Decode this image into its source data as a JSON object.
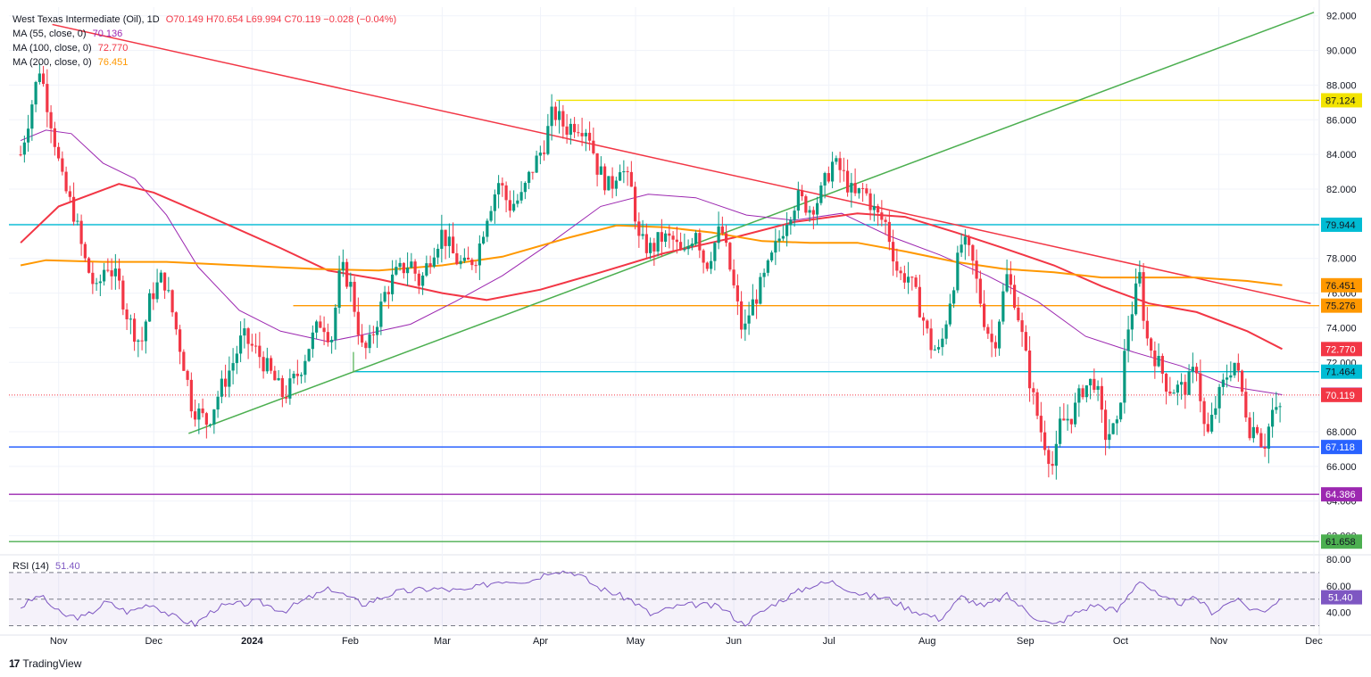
{
  "legend": {
    "symbol": "West Texas Intermediate (Oil), 1D",
    "ohlc": "O70.149  H70.654  L69.994  C70.119  −0.028 (−0.04%)",
    "ma55_label": "MA (55, close, 0)",
    "ma55_value": "70.136",
    "ma100_label": "MA (100, close, 0)",
    "ma100_value": "72.770",
    "ma200_label": "MA (200, close, 0)",
    "ma200_value": "76.451",
    "rsi_label": "RSI (14)",
    "rsi_value": "51.40"
  },
  "brand": {
    "logo": "17",
    "name": "TradingView"
  },
  "colors": {
    "up": "#089981",
    "down": "#f23645",
    "ma55": "#9c27b0",
    "ma100": "#f23645",
    "ma200": "#ff9800",
    "rsi": "#7e57c2",
    "trend_down": "#f23645",
    "trend_up": "#4caf50"
  },
  "chart_data": {
    "type": "candlestick",
    "title": "West Texas Intermediate (Oil), 1D",
    "x_ticks": [
      "Nov",
      "Dec",
      "2024",
      "Feb",
      "Mar",
      "Apr",
      "May",
      "Jun",
      "Jul",
      "Aug",
      "Sep",
      "Oct",
      "Nov",
      "Dec"
    ],
    "y_ticks": [
      "92.000",
      "90.000",
      "88.000",
      "86.000",
      "84.000",
      "82.000",
      "80.000",
      "78.000",
      "76.000",
      "74.000",
      "72.000",
      "70.000",
      "68.000",
      "66.000",
      "64.000",
      "62.000"
    ],
    "ylim": [
      61,
      92.5
    ],
    "rsi_ticks": [
      "80.00",
      "60.00",
      "40.00"
    ],
    "rsi_ylim": [
      27,
      82
    ],
    "rsi_bands": [
      70,
      50,
      30
    ],
    "last_close": 70.119,
    "ohlc": {
      "open": 70.149,
      "high": 70.654,
      "low": 69.994,
      "close": 70.119,
      "change": -0.028,
      "change_pct": -0.04
    },
    "moving_averages": [
      {
        "name": "MA (55, close, 0)",
        "last": 70.136
      },
      {
        "name": "MA (100, close, 0)",
        "last": 72.77
      },
      {
        "name": "MA (200, close, 0)",
        "last": 76.451
      }
    ],
    "rsi_last": 51.4,
    "horizontal_levels": [
      {
        "value": 87.124,
        "color": "#f2e300",
        "label": "87.124",
        "label_bg": "#f2e300",
        "label_fg": "#131722"
      },
      {
        "value": 79.944,
        "color": "#00bcd4",
        "label": "79.944",
        "label_bg": "#00bcd4",
        "label_fg": "#131722"
      },
      {
        "value": 76.451,
        "color": "#ff9800",
        "label": "76.451",
        "label_bg": "#ff9800",
        "label_fg": "#131722"
      },
      {
        "value": 75.276,
        "color": "#ff9800",
        "label": "75.276",
        "label_bg": "#ff9800",
        "label_fg": "#131722"
      },
      {
        "value": 72.77,
        "color": "#f23645",
        "label": "72.770",
        "label_bg": "#f23645",
        "label_fg": "#ffffff"
      },
      {
        "value": 71.464,
        "color": "#00bcd4",
        "label": "71.464",
        "label_bg": "#00bcd4",
        "label_fg": "#131722"
      },
      {
        "value": 70.136,
        "color": "#9c27b0",
        "label": "70.136",
        "label_bg": "#9c27b0",
        "label_fg": "#ffffff"
      },
      {
        "value": 70.119,
        "color": "#f23645",
        "label": "70.119",
        "label_bg": "#f23645",
        "label_fg": "#ffffff"
      },
      {
        "value": 67.118,
        "color": "#2962ff",
        "label": "67.118",
        "label_bg": "#2962ff",
        "label_fg": "#ffffff"
      },
      {
        "value": 64.386,
        "color": "#9c27b0",
        "label": "64.386",
        "label_bg": "#9c27b0",
        "label_fg": "#ffffff"
      },
      {
        "value": 61.658,
        "color": "#4caf50",
        "label": "61.658",
        "label_bg": "#4caf50",
        "label_fg": "#131722"
      }
    ],
    "rsi_label_value": "51.40",
    "ma_paths": [
      {
        "name": "MA 55",
        "color": "#9c27b0",
        "points": [
          [
            "2023-10-20",
            84.8
          ],
          [
            "2023-10-28",
            85.4
          ],
          [
            "2023-11-05",
            85.2
          ],
          [
            "2023-11-15",
            83.5
          ],
          [
            "2023-11-25",
            82.6
          ],
          [
            "2023-12-05",
            80.5
          ],
          [
            "2023-12-15",
            77.5
          ],
          [
            "2023-12-28",
            75.0
          ],
          [
            "2024-01-10",
            73.8
          ],
          [
            "2024-01-25",
            73.2
          ],
          [
            "2024-02-05",
            73.6
          ],
          [
            "2024-02-20",
            74.2
          ],
          [
            "2024-03-05",
            75.5
          ],
          [
            "2024-03-20",
            77.0
          ],
          [
            "2024-04-05",
            79.0
          ],
          [
            "2024-04-20",
            81.0
          ],
          [
            "2024-05-05",
            81.7
          ],
          [
            "2024-05-20",
            81.5
          ],
          [
            "2024-06-05",
            80.5
          ],
          [
            "2024-06-20",
            80.2
          ],
          [
            "2024-07-05",
            80.6
          ],
          [
            "2024-07-20",
            79.3
          ],
          [
            "2024-08-05",
            78.2
          ],
          [
            "2024-08-20",
            77.0
          ],
          [
            "2024-09-05",
            75.5
          ],
          [
            "2024-09-20",
            73.5
          ],
          [
            "2024-10-05",
            72.6
          ],
          [
            "2024-10-20",
            71.8
          ],
          [
            "2024-11-05",
            70.6
          ],
          [
            "2024-11-21",
            70.136
          ]
        ]
      },
      {
        "name": "MA 100",
        "color": "#f23645",
        "points": [
          [
            "2023-10-20",
            78.9
          ],
          [
            "2023-11-01",
            81.0
          ],
          [
            "2023-11-20",
            82.3
          ],
          [
            "2023-12-01",
            81.8
          ],
          [
            "2023-12-20",
            80.3
          ],
          [
            "2024-01-10",
            78.6
          ],
          [
            "2024-01-25",
            77.3
          ],
          [
            "2024-02-10",
            76.8
          ],
          [
            "2024-03-01",
            76.0
          ],
          [
            "2024-03-15",
            75.6
          ],
          [
            "2024-04-01",
            76.2
          ],
          [
            "2024-04-20",
            77.2
          ],
          [
            "2024-05-10",
            78.3
          ],
          [
            "2024-06-01",
            79.2
          ],
          [
            "2024-06-20",
            80.1
          ],
          [
            "2024-07-10",
            80.6
          ],
          [
            "2024-07-25",
            80.4
          ],
          [
            "2024-08-10",
            79.5
          ],
          [
            "2024-08-25",
            78.6
          ],
          [
            "2024-09-10",
            77.6
          ],
          [
            "2024-09-25",
            76.4
          ],
          [
            "2024-10-10",
            75.4
          ],
          [
            "2024-10-25",
            74.9
          ],
          [
            "2024-11-10",
            73.8
          ],
          [
            "2024-11-21",
            72.77
          ]
        ]
      },
      {
        "name": "MA 200",
        "color": "#ff9800",
        "points": [
          [
            "2023-10-20",
            77.6
          ],
          [
            "2023-10-28",
            77.9
          ],
          [
            "2023-11-15",
            77.8
          ],
          [
            "2023-12-05",
            77.8
          ],
          [
            "2023-12-28",
            77.6
          ],
          [
            "2024-01-20",
            77.4
          ],
          [
            "2024-02-10",
            77.3
          ],
          [
            "2024-03-01",
            77.6
          ],
          [
            "2024-03-20",
            78.1
          ],
          [
            "2024-04-10",
            79.2
          ],
          [
            "2024-04-25",
            79.9
          ],
          [
            "2024-05-10",
            79.8
          ],
          [
            "2024-05-25",
            79.5
          ],
          [
            "2024-06-10",
            79.0
          ],
          [
            "2024-06-25",
            78.9
          ],
          [
            "2024-07-10",
            78.9
          ],
          [
            "2024-07-25",
            78.4
          ],
          [
            "2024-08-10",
            77.8
          ],
          [
            "2024-08-25",
            77.4
          ],
          [
            "2024-09-10",
            77.2
          ],
          [
            "2024-09-25",
            76.9
          ],
          [
            "2024-10-10",
            76.9
          ],
          [
            "2024-10-25",
            76.9
          ],
          [
            "2024-11-10",
            76.7
          ],
          [
            "2024-11-21",
            76.451
          ]
        ]
      }
    ],
    "trend_lines": [
      {
        "name": "down",
        "color": "#f23645",
        "from": [
          "2023-10-30",
          91.5
        ],
        "to": [
          "2024-11-30",
          75.4
        ]
      },
      {
        "name": "up",
        "color": "#4caf50",
        "from": [
          "2023-12-12",
          67.9
        ],
        "to": [
          "2024-12-01",
          92.2
        ]
      }
    ],
    "segment_lines": [
      {
        "color": "#f2e300",
        "from": [
          "2024-04-06",
          87.124
        ],
        "to": [
          "2024-12-01",
          87.124
        ]
      },
      {
        "color": "#ff9800",
        "from": [
          "2024-01-14",
          75.276
        ],
        "to": [
          "2024-12-01",
          75.276
        ]
      },
      {
        "color": "#00bcd4",
        "from": [
          "2024-02-02",
          71.464
        ],
        "to": [
          "2024-12-01",
          71.464
        ]
      },
      {
        "color": "#4caf50",
        "from": [
          "2024-02-02",
          71.464
        ],
        "to": [
          "2024-02-02",
          71.464
        ]
      }
    ],
    "candles_path": [
      [
        "2023-10-20",
        84.0
      ],
      [
        "2023-10-23",
        86.5
      ],
      [
        "2023-10-26",
        89.0
      ],
      [
        "2023-10-30",
        85.6
      ],
      [
        "2023-11-02",
        82.5
      ],
      [
        "2023-11-06",
        80.5
      ],
      [
        "2023-11-09",
        78.0
      ],
      [
        "2023-11-13",
        76.0
      ],
      [
        "2023-11-16",
        77.8
      ],
      [
        "2023-11-20",
        76.5
      ],
      [
        "2023-11-23",
        74.5
      ],
      [
        "2023-11-27",
        73.0
      ],
      [
        "2023-11-30",
        75.8
      ],
      [
        "2023-12-04",
        77.0
      ],
      [
        "2023-12-07",
        74.8
      ],
      [
        "2023-12-11",
        71.5
      ],
      [
        "2023-12-13",
        69.5
      ],
      [
        "2023-12-18",
        68.5
      ],
      [
        "2023-12-21",
        70.0
      ],
      [
        "2023-12-26",
        72.0
      ],
      [
        "2023-12-29",
        73.5
      ],
      [
        "2024-01-03",
        72.5
      ],
      [
        "2024-01-08",
        71.0
      ],
      [
        "2024-01-11",
        70.0
      ],
      [
        "2024-01-16",
        71.5
      ],
      [
        "2024-01-19",
        73.0
      ],
      [
        "2024-01-23",
        74.5
      ],
      [
        "2024-01-26",
        73.3
      ],
      [
        "2024-01-29",
        77.5
      ],
      [
        "2024-02-01",
        76.5
      ],
      [
        "2024-02-05",
        72.5
      ],
      [
        "2024-02-07",
        73.0
      ],
      [
        "2024-02-12",
        76.0
      ],
      [
        "2024-02-15",
        77.0
      ],
      [
        "2024-02-20",
        77.8
      ],
      [
        "2024-02-23",
        76.5
      ],
      [
        "2024-02-27",
        78.5
      ],
      [
        "2024-03-01",
        79.5
      ],
      [
        "2024-03-05",
        78.0
      ],
      [
        "2024-03-08",
        77.5
      ],
      [
        "2024-03-12",
        78.2
      ],
      [
        "2024-03-15",
        80.5
      ],
      [
        "2024-03-19",
        82.5
      ],
      [
        "2024-03-22",
        81.0
      ],
      [
        "2024-03-26",
        81.5
      ],
      [
        "2024-03-29",
        83.0
      ],
      [
        "2024-04-02",
        84.5
      ],
      [
        "2024-04-05",
        86.5
      ],
      [
        "2024-04-09",
        85.5
      ],
      [
        "2024-04-12",
        85.8
      ],
      [
        "2024-04-16",
        85.5
      ],
      [
        "2024-04-19",
        83.2
      ],
      [
        "2024-04-23",
        82.0
      ],
      [
        "2024-04-26",
        83.5
      ],
      [
        "2024-04-30",
        81.8
      ],
      [
        "2024-05-02",
        79.0
      ],
      [
        "2024-05-06",
        78.5
      ],
      [
        "2024-05-09",
        79.2
      ],
      [
        "2024-05-13",
        79.0
      ],
      [
        "2024-05-16",
        78.0
      ],
      [
        "2024-05-20",
        79.8
      ],
      [
        "2024-05-23",
        77.5
      ],
      [
        "2024-05-28",
        79.8
      ],
      [
        "2024-05-31",
        77.2
      ],
      [
        "2024-06-04",
        73.5
      ],
      [
        "2024-06-06",
        75.0
      ],
      [
        "2024-06-11",
        77.0
      ],
      [
        "2024-06-14",
        78.5
      ],
      [
        "2024-06-18",
        80.5
      ],
      [
        "2024-06-21",
        81.5
      ],
      [
        "2024-06-25",
        80.9
      ],
      [
        "2024-06-28",
        81.5
      ],
      [
        "2024-07-02",
        83.5
      ],
      [
        "2024-07-05",
        83.0
      ],
      [
        "2024-07-09",
        81.5
      ],
      [
        "2024-07-12",
        82.0
      ],
      [
        "2024-07-16",
        80.5
      ],
      [
        "2024-07-19",
        80.0
      ],
      [
        "2024-07-23",
        77.0
      ],
      [
        "2024-07-26",
        77.0
      ],
      [
        "2024-07-30",
        75.0
      ],
      [
        "2024-08-02",
        73.0
      ],
      [
        "2024-08-05",
        72.5
      ],
      [
        "2024-08-08",
        75.5
      ],
      [
        "2024-08-12",
        79.0
      ],
      [
        "2024-08-15",
        78.0
      ],
      [
        "2024-08-19",
        74.5
      ],
      [
        "2024-08-22",
        72.8
      ],
      [
        "2024-08-26",
        77.0
      ],
      [
        "2024-08-29",
        75.5
      ],
      [
        "2024-09-03",
        70.3
      ],
      [
        "2024-09-06",
        68.0
      ],
      [
        "2024-09-10",
        65.8
      ],
      [
        "2024-09-12",
        68.5
      ],
      [
        "2024-09-16",
        69.0
      ],
      [
        "2024-09-19",
        70.5
      ],
      [
        "2024-09-23",
        71.0
      ],
      [
        "2024-09-26",
        67.8
      ],
      [
        "2024-09-30",
        68.2
      ],
      [
        "2024-10-03",
        73.7
      ],
      [
        "2024-10-07",
        77.0
      ],
      [
        "2024-10-09",
        73.5
      ],
      [
        "2024-10-14",
        71.5
      ],
      [
        "2024-10-16",
        70.5
      ],
      [
        "2024-10-21",
        70.5
      ],
      [
        "2024-10-23",
        71.0
      ],
      [
        "2024-10-25",
        71.8
      ],
      [
        "2024-10-28",
        67.4
      ],
      [
        "2024-10-31",
        69.5
      ],
      [
        "2024-11-04",
        71.5
      ],
      [
        "2024-11-06",
        72.0
      ],
      [
        "2024-11-08",
        70.5
      ],
      [
        "2024-11-11",
        68.0
      ],
      [
        "2024-11-13",
        68.5
      ],
      [
        "2024-11-15",
        67.0
      ],
      [
        "2024-11-18",
        69.2
      ],
      [
        "2024-11-20",
        68.9
      ],
      [
        "2024-11-21",
        70.1
      ]
    ],
    "rsi_path": [
      [
        "2023-10-20",
        44
      ],
      [
        "2023-10-26",
        53
      ],
      [
        "2023-11-02",
        38
      ],
      [
        "2023-11-09",
        36
      ],
      [
        "2023-11-16",
        48
      ],
      [
        "2023-11-23",
        40
      ],
      [
        "2023-11-30",
        47
      ],
      [
        "2023-12-07",
        37
      ],
      [
        "2023-12-14",
        31
      ],
      [
        "2023-12-21",
        44
      ],
      [
        "2024-01-03",
        48
      ],
      [
        "2024-01-11",
        41
      ],
      [
        "2024-01-19",
        51
      ],
      [
        "2024-01-26",
        58
      ],
      [
        "2024-02-05",
        46
      ],
      [
        "2024-02-15",
        55
      ],
      [
        "2024-02-27",
        58
      ],
      [
        "2024-03-08",
        56
      ],
      [
        "2024-03-19",
        64
      ],
      [
        "2024-03-29",
        64
      ],
      [
        "2024-04-05",
        72
      ],
      [
        "2024-04-12",
        70
      ],
      [
        "2024-04-19",
        59
      ],
      [
        "2024-04-30",
        49
      ],
      [
        "2024-05-06",
        38
      ],
      [
        "2024-05-13",
        44
      ],
      [
        "2024-05-20",
        46
      ],
      [
        "2024-05-28",
        44
      ],
      [
        "2024-06-04",
        31
      ],
      [
        "2024-06-14",
        47
      ],
      [
        "2024-06-25",
        60
      ],
      [
        "2024-07-02",
        63
      ],
      [
        "2024-07-05",
        60
      ],
      [
        "2024-07-12",
        53
      ],
      [
        "2024-07-19",
        51
      ],
      [
        "2024-07-26",
        43
      ],
      [
        "2024-08-05",
        35
      ],
      [
        "2024-08-12",
        52
      ],
      [
        "2024-08-19",
        44
      ],
      [
        "2024-08-26",
        53
      ],
      [
        "2024-09-03",
        38
      ],
      [
        "2024-09-10",
        30
      ],
      [
        "2024-09-17",
        40
      ],
      [
        "2024-09-23",
        46
      ],
      [
        "2024-09-30",
        41
      ],
      [
        "2024-10-07",
        65
      ],
      [
        "2024-10-14",
        50
      ],
      [
        "2024-10-21",
        47
      ],
      [
        "2024-10-25",
        51
      ],
      [
        "2024-10-30",
        40
      ],
      [
        "2024-11-06",
        50
      ],
      [
        "2024-11-11",
        43
      ],
      [
        "2024-11-15",
        41
      ],
      [
        "2024-11-21",
        51.4
      ]
    ]
  }
}
